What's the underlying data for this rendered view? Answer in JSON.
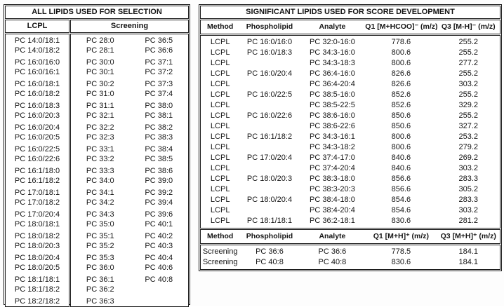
{
  "left_table": {
    "title": "ALL LIPIDS USED FOR SELECTION",
    "col1_header": "LCPL",
    "col2_header": "Screening",
    "rows": [
      [
        "PC 14:0/18:1",
        "PC 28:0",
        "PC 36:5"
      ],
      [
        "PC 14:0/18:2",
        "PC 28:1",
        "PC 36:6"
      ],
      [
        "PC 16:0/16:0",
        "PC 30:0",
        "PC 37:1"
      ],
      [
        "PC 16:0/16:1",
        "PC 30:1",
        "PC 37:2"
      ],
      [
        "PC 16:0/18:1",
        "PC 30:2",
        "PC 37:3"
      ],
      [
        "PC 16:0/18:2",
        "PC 31:0",
        "PC 37:4"
      ],
      [
        "PC 16:0/18:3",
        "PC 31:1",
        "PC 38:0"
      ],
      [
        "PC 16:0/20:3",
        "PC 32:1",
        "PC 38:1"
      ],
      [
        "PC 16:0/20:4",
        "PC 32:2",
        "PC 38:2"
      ],
      [
        "PC 16:0/20:5",
        "PC 32:3",
        "PC 38:3"
      ],
      [
        "PC 16:0/22:5",
        "PC 33:1",
        "PC 38:4"
      ],
      [
        "PC 16:0/22:6",
        "PC 33:2",
        "PC 38:5"
      ],
      [
        "PC 16:1/18:0",
        "PC 33:3",
        "PC 38:6"
      ],
      [
        "PC 16:1/18:2",
        "PC 34:0",
        "PC 39:0"
      ],
      [
        "PC 17:0/18:1",
        "PC 34:1",
        "PC 39:2"
      ],
      [
        "PC 17:0/18:2",
        "PC 34:2",
        "PC 39:4"
      ],
      [
        "PC 17:0/20:4",
        "PC 34:3",
        "PC 39:6"
      ],
      [
        "PC 18:0/18:1",
        "PC 35:0",
        "PC 40:1"
      ],
      [
        "PC 18:0/18:2",
        "PC 35:1",
        "PC 40:2"
      ],
      [
        "PC 18:0/20:3",
        "PC 35:2",
        "PC 40:3"
      ],
      [
        "PC 18:0/20:4",
        "PC 35:3",
        "PC 40:4"
      ],
      [
        "PC 18:0/20:5",
        "PC 36:0",
        "PC 40:6"
      ],
      [
        "PC 18:1/18:1",
        "PC 36:1",
        "PC 40:8"
      ],
      [
        "PC 18:1/18:2",
        "PC 36:2",
        ""
      ],
      [
        "PC 18:2/18:2",
        "PC 36:3",
        ""
      ]
    ]
  },
  "right_table": {
    "title": "SIGNIFICANT LIPIDS USED FOR SCORE DEVELOPMENT",
    "lcpl_headers": [
      "Method",
      "Phospholipid",
      "Analyte",
      "Q1 [M+HCOO]⁻ (m/z)",
      "Q3 [M-H]⁻ (m/z)"
    ],
    "lcpl_rows": [
      [
        "LCPL",
        "PC 16:0/16:0",
        "PC 32:0-16:0",
        "778.6",
        "255.2"
      ],
      [
        "LCPL",
        "PC 16:0/18:3",
        "PC 34:3-16:0",
        "800.6",
        "255.2"
      ],
      [
        "LCPL",
        "",
        "PC 34:3-18:3",
        "800.6",
        "277.2"
      ],
      [
        "LCPL",
        "PC 16:0/20:4",
        "PC 36:4-16:0",
        "826.6",
        "255.2"
      ],
      [
        "LCPL",
        "",
        "PC 36:4-20:4",
        "826.6",
        "303.2"
      ],
      [
        "LCPL",
        "PC 16:0/22:5",
        "PC 38:5-16:0",
        "852.6",
        "255.2"
      ],
      [
        "LCPL",
        "",
        "PC 38:5-22:5",
        "852.6",
        "329.2"
      ],
      [
        "LCPL",
        "PC 16:0/22:6",
        "PC 38:6-16:0",
        "850.6",
        "255.2"
      ],
      [
        "LCPL",
        "",
        "PC 38:6-22:6",
        "850.6",
        "327.2"
      ],
      [
        "LCPL",
        "PC 16:1/18:2",
        "PC 34:3-16:1",
        "800.6",
        "253.2"
      ],
      [
        "LCPL",
        "",
        "PC 34:3-18:2",
        "800.6",
        "279.2"
      ],
      [
        "LCPL",
        "PC 17:0/20:4",
        "PC 37:4-17:0",
        "840.6",
        "269.2"
      ],
      [
        "LCPL",
        "",
        "PC 37:4-20:4",
        "840.6",
        "303.2"
      ],
      [
        "LCPL",
        "PC 18:0/20:3",
        "PC 38:3-18:0",
        "856.6",
        "283.3"
      ],
      [
        "LCPL",
        "",
        "PC 38:3-20:3",
        "856.6",
        "305.2"
      ],
      [
        "LCPL",
        "PC 18:0/20:4",
        "PC 38:4-18:0",
        "854.6",
        "283.3"
      ],
      [
        "LCPL",
        "",
        "PC 38:4-20:4",
        "854.6",
        "303.2"
      ],
      [
        "LCPL",
        "PC 18:1/18:1",
        "PC 36:2-18:1",
        "830.6",
        "281.2"
      ]
    ],
    "screening_headers": [
      "Method",
      "Phospholipid",
      "Analyte",
      "Q1 [M+H]⁺ (m/z)",
      "Q3 [M+H]⁺ (m/z)"
    ],
    "screening_rows": [
      [
        "Screening",
        "PC 36:6",
        "PC 36:6",
        "778.5",
        "184.1"
      ],
      [
        "Screening",
        "PC 40:8",
        "PC 40:8",
        "830.6",
        "184.1"
      ]
    ]
  }
}
